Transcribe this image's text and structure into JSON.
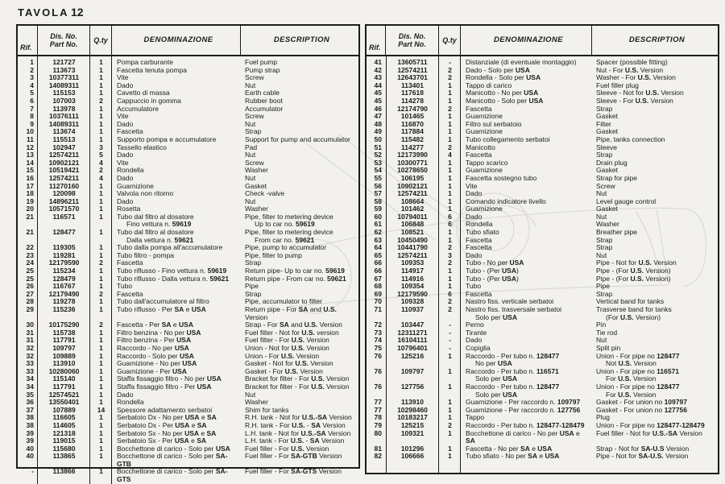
{
  "page": {
    "title": "TAVOLA",
    "number": "12"
  },
  "colors": {
    "paper": "#f2f1ed",
    "ink": "#1b1b1b",
    "watermark": "#dcdbd3"
  },
  "table_headers": {
    "rif": "Rif.",
    "dis_no": "Dis. No.",
    "part_no": "Part No.",
    "qty": "Q.ty",
    "denominazione": "DENOMINAZIONE",
    "description": "DESCRIPTION"
  },
  "bold_tokens": [
    "128477-128479",
    "U.S.-SA",
    "SA-U.S.",
    "SA-U.S",
    "SA-GTB",
    "SA-GTS",
    "U.S.",
    "USA",
    "128477",
    "128479",
    "116571",
    "109797",
    "127756",
    "59619",
    "59621",
    "SA"
  ],
  "left_table": {
    "rows": [
      [
        "1",
        "121727",
        "1",
        [
          "Pompa carburante"
        ],
        [
          "Fuel pump"
        ]
      ],
      [
        "2",
        "113673",
        "1",
        [
          "Fascetta tenuta pompa"
        ],
        [
          "Pump strap"
        ]
      ],
      [
        "3",
        "10377311",
        "1",
        [
          "Vite"
        ],
        [
          "Screw"
        ]
      ],
      [
        "4",
        "14089311",
        "1",
        [
          "Dado"
        ],
        [
          "Nut"
        ]
      ],
      [
        "5",
        "115153",
        "1",
        [
          "Cavetto di massa"
        ],
        [
          "Earth cable"
        ]
      ],
      [
        "6",
        "107003",
        "2",
        [
          "Cappuccio in gomma"
        ],
        [
          "Rubber boot"
        ]
      ],
      [
        "7",
        "113978",
        "1",
        [
          "Accumulatore"
        ],
        [
          "Accumulator"
        ]
      ],
      [
        "8",
        "10376111",
        "1",
        [
          "Vite"
        ],
        [
          "Screw"
        ]
      ],
      [
        "9",
        "14089311",
        "1",
        [
          "Dado"
        ],
        [
          "Nut"
        ]
      ],
      [
        "10",
        "113674",
        "1",
        [
          "Fascetta"
        ],
        [
          "Strap"
        ]
      ],
      [
        "11",
        "115513",
        "1",
        [
          "Supporto pompa e accumulatore"
        ],
        [
          "Support for pump and accumulator"
        ]
      ],
      [
        "12",
        "102947",
        "3",
        [
          "Tassello elastico"
        ],
        [
          "Pad"
        ]
      ],
      [
        "13",
        "12574211",
        "5",
        [
          "Dado"
        ],
        [
          "Nut"
        ]
      ],
      [
        "14",
        "10902121",
        "4",
        [
          "Vite"
        ],
        [
          "Screw"
        ]
      ],
      [
        "15",
        "10519421",
        "2",
        [
          "Rondella"
        ],
        [
          "Washer"
        ]
      ],
      [
        "16",
        "12574211",
        "4",
        [
          "Dado"
        ],
        [
          "Nut"
        ]
      ],
      [
        "17",
        "11270160",
        "1",
        [
          "Guarnizione"
        ],
        [
          "Gasket"
        ]
      ],
      [
        "18",
        "120098",
        "1",
        [
          "Valvola non ritorno"
        ],
        [
          "Check -valve"
        ]
      ],
      [
        "19",
        "14896211",
        "1",
        [
          "Dado"
        ],
        [
          "Nut"
        ]
      ],
      [
        "20",
        "10571570",
        "1",
        [
          "Rosetta"
        ],
        [
          "Washer"
        ]
      ],
      [
        "21",
        "116571",
        "1",
        [
          "Tubo dal filtro al dosatore",
          "Fino vettura n. 59619"
        ],
        [
          "Pipe, filter to metering device",
          "Up to car no. 59619"
        ]
      ],
      [
        "21",
        "128477",
        "1",
        [
          "Tubo dal filtro al dosatore",
          "Dalla vettura n. 59621"
        ],
        [
          "Pipe, filter to metering device",
          "From car no. 59621"
        ]
      ],
      [
        "22",
        "119305",
        "1",
        [
          "Tubo dalla pompa all'accumulatore"
        ],
        [
          "Pipe, pump to accumulator"
        ]
      ],
      [
        "23",
        "119281",
        "1",
        [
          "Tubo filtro - pompa"
        ],
        [
          "Pipe, filter to pump"
        ]
      ],
      [
        "24",
        "12179590",
        "2",
        [
          "Fascetta"
        ],
        [
          "Strap"
        ]
      ],
      [
        "25",
        "115234",
        "1",
        [
          "Tubo riflusso - Fino vettura n. 59619"
        ],
        [
          "Return pipe- Up to car no. 59619"
        ]
      ],
      [
        "25",
        "128479",
        "1",
        [
          "Tubo riflusso - Dalla vettura n. 59621"
        ],
        [
          "Return pipe - From car no. 59621"
        ]
      ],
      [
        "26",
        "116767",
        "1",
        [
          "Tubo"
        ],
        [
          "Pipe"
        ]
      ],
      [
        "27",
        "12179490",
        "2",
        [
          "Fascetta"
        ],
        [
          "Strap"
        ]
      ],
      [
        "28",
        "119278",
        "1",
        [
          "Tubo dall'accumulatore al filtro"
        ],
        [
          "Pipe, accumulator to filter"
        ]
      ],
      [
        "29",
        "115236",
        "1",
        [
          "Tubo riflusso - Per SA e USA"
        ],
        [
          "Return pipe - For SA and U.S. Version"
        ]
      ],
      [
        "30",
        "10175290",
        "2",
        [
          "Fascetta - Per SA e USA"
        ],
        [
          "Strap - For SA and U.S. Version"
        ]
      ],
      [
        "31",
        "115738",
        "1",
        [
          "Filtro benzina - No per USA"
        ],
        [
          "Fuel filter - Not for U.S. version"
        ]
      ],
      [
        "31",
        "117791",
        "1",
        [
          "Filtro benzina - Per USA"
        ],
        [
          "Fuel filter - For U.S. Version"
        ]
      ],
      [
        "32",
        "109797",
        "1",
        [
          "Raccordo - No per USA"
        ],
        [
          "Union - Not for U.S. Version"
        ]
      ],
      [
        "32",
        "109889",
        "1",
        [
          "Raccordo - Solo per USA"
        ],
        [
          "Union - For U.S. Version"
        ]
      ],
      [
        "33",
        "113910",
        "1",
        [
          "Guarnizione - No per USA"
        ],
        [
          "Gasket - Not for U.S. Version"
        ]
      ],
      [
        "33",
        "10280060",
        "1",
        [
          "Guarnizione - Per USA"
        ],
        [
          "Gasket - For U.S. Version"
        ]
      ],
      [
        "34",
        "115140",
        "1",
        [
          "Staffa fissaggio filtro - No per USA"
        ],
        [
          "Bracket for filter - For U.S. Version"
        ]
      ],
      [
        "34",
        "117791",
        "1",
        [
          "Staffa fissaggio filtro - Per USA"
        ],
        [
          "Bracket for filter - For U.S. Version"
        ]
      ],
      [
        "35",
        "12574521",
        "1",
        [
          "Dado"
        ],
        [
          "Nut"
        ]
      ],
      [
        "36",
        "13550401",
        "1",
        [
          "Rondella"
        ],
        [
          "Washer"
        ]
      ],
      [
        "37",
        "107889",
        "14",
        [
          "Spessore adattamento serbatoi"
        ],
        [
          "Shim for tanks"
        ]
      ],
      [
        "38",
        "116605",
        "1",
        [
          "Serbatoio Dx - No per USA e SA"
        ],
        [
          "R.H. tank - Not for U.S.-SA Version"
        ]
      ],
      [
        "38",
        "114605",
        "1",
        [
          "Serbatoio Dx - Per USA e SA"
        ],
        [
          "R.H. tank - For U.S. - SA Version"
        ]
      ],
      [
        "39",
        "121318",
        "1",
        [
          "Serbatoio Sx - No per USA e SA"
        ],
        [
          "L.H. tank - Not for U.S.-SA Version"
        ]
      ],
      [
        "39",
        "119015",
        "1",
        [
          "Serbatoio Sx - Per USA e SA"
        ],
        [
          "L.H. tank - For U.S. - SA Version"
        ]
      ],
      [
        "40",
        "115680",
        "1",
        [
          "Bocchettone di carico - Solo per USA"
        ],
        [
          "Fuel filler - For U.S. Version"
        ]
      ],
      [
        "40",
        "113865",
        "1",
        [
          "Bocchettone di carico - Solo per SA-GTB"
        ],
        [
          "Fuel filler - For SA-GTB Version"
        ]
      ],
      [
        "-",
        "113866",
        "1",
        [
          "Bocchettone di carico - Solo per SA-GTS"
        ],
        [
          "Fuel filler - For SA-GTS Version"
        ]
      ]
    ]
  },
  "right_table": {
    "rows": [
      [
        "41",
        "13605711",
        "-",
        [
          "Distanziale (di eventuale montaggio)"
        ],
        [
          "Spacer (possible fitting)"
        ]
      ],
      [
        "42",
        "12574211",
        "2",
        [
          "Dado - Solo per USA"
        ],
        [
          "Nut - For U.S. Version"
        ]
      ],
      [
        "43",
        "12643701",
        "2",
        [
          "Rondella - Solo per USA"
        ],
        [
          "Washer - For U.S. Version"
        ]
      ],
      [
        "44",
        "113401",
        "1",
        [
          "Tappo di carico"
        ],
        [
          "Fuel filler plug"
        ]
      ],
      [
        "45",
        "117618",
        "1",
        [
          "Manicotto - No per USA"
        ],
        [
          "Sleeve - Not for U.S. Version"
        ]
      ],
      [
        "45",
        "114278",
        "1",
        [
          "Manicotto - Solo per USA"
        ],
        [
          "Sleeve - For U.S. Version"
        ]
      ],
      [
        "46",
        "12174790",
        "2",
        [
          "Fascetta"
        ],
        [
          "Strap"
        ]
      ],
      [
        "47",
        "101465",
        "1",
        [
          "Guarnizione"
        ],
        [
          "Gasket"
        ]
      ],
      [
        "48",
        "116870",
        "1",
        [
          "Filtro sul serbatoio"
        ],
        [
          "Filter"
        ]
      ],
      [
        "49",
        "117884",
        "1",
        [
          "Guarnizione"
        ],
        [
          "Gasket"
        ]
      ],
      [
        "50",
        "115482",
        "1",
        [
          "Tubo collegamento serbatoi"
        ],
        [
          "Pipe, tanks connection"
        ]
      ],
      [
        "51",
        "114277",
        "2",
        [
          "Manicotto"
        ],
        [
          "Sleeve"
        ]
      ],
      [
        "52",
        "12173990",
        "4",
        [
          "Fascetta"
        ],
        [
          "Strap"
        ]
      ],
      [
        "53",
        "10300771",
        "1",
        [
          "Tappo scarico"
        ],
        [
          "Drain plug"
        ]
      ],
      [
        "54",
        "10278650",
        "1",
        [
          "Guarnizione"
        ],
        [
          "Gasket"
        ]
      ],
      [
        "55",
        "106195",
        "1",
        [
          "Fascetta sostegno tubo"
        ],
        [
          "Strap for pipe"
        ]
      ],
      [
        "56",
        "10902121",
        "1",
        [
          "Vite"
        ],
        [
          "Screw"
        ]
      ],
      [
        "57",
        "12574211",
        "1",
        [
          "Dado"
        ],
        [
          "Nut"
        ]
      ],
      [
        "58",
        "108664",
        "1",
        [
          "Comando indicatore livello"
        ],
        [
          "Level gauge control"
        ]
      ],
      [
        "59",
        "101462",
        "1",
        [
          "Guarnizione"
        ],
        [
          "Gasket"
        ]
      ],
      [
        "60",
        "10794011",
        "6",
        [
          "Dado"
        ],
        [
          "Nut"
        ]
      ],
      [
        "61",
        "106848",
        "6",
        [
          "Rondella"
        ],
        [
          "Washer"
        ]
      ],
      [
        "62",
        "108521",
        "1",
        [
          "Tubo sfiato"
        ],
        [
          "Breather pipe"
        ]
      ],
      [
        "63",
        "10450490",
        "1",
        [
          "Fascetta"
        ],
        [
          "Strap"
        ]
      ],
      [
        "64",
        "10441790",
        "2",
        [
          "Fascetta"
        ],
        [
          "Strap"
        ]
      ],
      [
        "65",
        "12574211",
        "3",
        [
          "Dado"
        ],
        [
          "Nut"
        ]
      ],
      [
        "66",
        "109353",
        "2",
        [
          "Tubo - No per USA"
        ],
        [
          "Pipe - Not for U.S. Version"
        ]
      ],
      [
        "66",
        "114917",
        "1",
        [
          "Tubo - (Per USA)"
        ],
        [
          "Pipe - (For U.S. Version)"
        ]
      ],
      [
        "67",
        "114916",
        "1",
        [
          "Tubo - (Per USA)"
        ],
        [
          "Pipe - (For U.S. Version)"
        ]
      ],
      [
        "68",
        "109354",
        "1",
        [
          "Tubo"
        ],
        [
          "Pipe"
        ]
      ],
      [
        "69",
        "12179590",
        "6",
        [
          "Fascetta"
        ],
        [
          "Strap"
        ]
      ],
      [
        "70",
        "109328",
        "2",
        [
          "Nastro fiss. verticale serbatoi"
        ],
        [
          "Vertical band for tanks"
        ]
      ],
      [
        "71",
        "110937",
        "2",
        [
          "Nastro fiss. trasversale serbatoi",
          "Solo per USA"
        ],
        [
          "Trasverse band for tanks",
          "(For U.S. Version)"
        ]
      ],
      [
        "72",
        "103447",
        "-",
        [
          "Perno"
        ],
        [
          "Pin"
        ]
      ],
      [
        "73",
        "12311271",
        "-",
        [
          "Tirante"
        ],
        [
          "Tie rod"
        ]
      ],
      [
        "74",
        "16104111",
        "-",
        [
          "Dado"
        ],
        [
          "Nut"
        ]
      ],
      [
        "75",
        "10796401",
        "-",
        [
          "Copiglia"
        ],
        [
          "Split pin"
        ]
      ],
      [
        "76",
        "125216",
        "1",
        [
          "Raccordo - Per tubo n. 128477",
          "No per USA"
        ],
        [
          "Union - For pipe no 128477",
          "Not U.S. Version"
        ]
      ],
      [
        "76",
        "109797",
        "1",
        [
          "Raccordo - Per tubo n. 116571",
          "Solo per USA"
        ],
        [
          "Union - For pipe no 116571",
          "For U.S. Version"
        ]
      ],
      [
        "76",
        "127756",
        "1",
        [
          "Raccordo - Per tubo n. 128477",
          "Solo per USA"
        ],
        [
          "Union - For pipe no 128477",
          "For U.S. Version"
        ]
      ],
      [
        "77",
        "113910",
        "1",
        [
          "Guarnizione - Per raccordo n. 109797"
        ],
        [
          "Gasket - For union no 109797"
        ]
      ],
      [
        "77",
        "10298460",
        "1",
        [
          "Guarnizione - Per raccordo n. 127756"
        ],
        [
          "Gasket - For union no 127756"
        ]
      ],
      [
        "78",
        "10183217",
        "1",
        [
          "Tappo"
        ],
        [
          "Plug"
        ]
      ],
      [
        "79",
        "125215",
        "2",
        [
          "Raccordo - Per tubo n. 128477-128479"
        ],
        [
          "Union - For pipe no 128477-128479"
        ]
      ],
      [
        "80",
        "109321",
        "1",
        [
          "Bocchettone di carico - No per USA e SA"
        ],
        [
          "Fuel filler - Not for U.S.-SA Version"
        ]
      ],
      [
        "81",
        "101296",
        "1",
        [
          "Fascetta - No per SA e USA"
        ],
        [
          "Strap - Not for SA-U.S Version"
        ]
      ],
      [
        "82",
        "106666",
        "1",
        [
          "Tubo sfiato - No per SA e USA"
        ],
        [
          "Pipe - Not for SA-U.S. Version"
        ]
      ]
    ]
  }
}
